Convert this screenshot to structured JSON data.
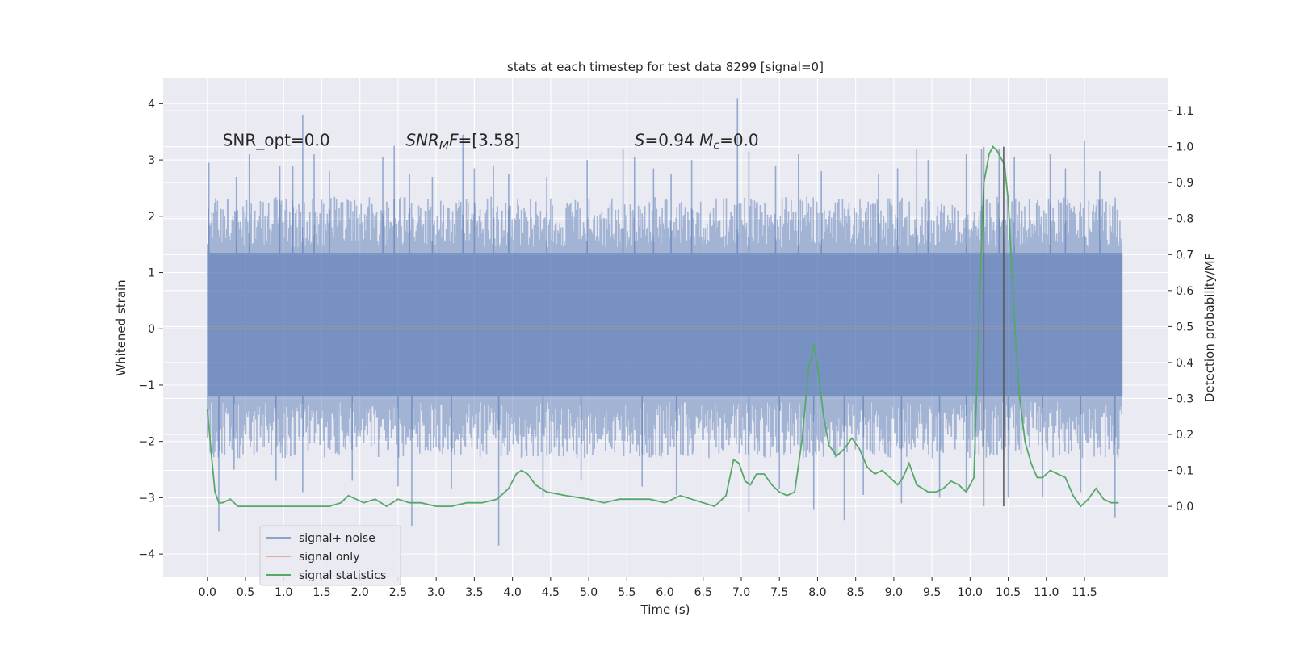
{
  "chart_data": {
    "type": "line",
    "title": "stats at each timestep for test data 8299 [signal=0]",
    "xlabel": "Time (s)",
    "ylabel": "Whitened strain",
    "ylabel_right": "Detection probability/MF",
    "xlim": [
      -0.58,
      12.59
    ],
    "ylim": [
      -4.4,
      4.45
    ],
    "ylim_right": [
      -0.195,
      1.19
    ],
    "x_ticks": [
      0.0,
      0.5,
      1.0,
      1.5,
      2.0,
      2.5,
      3.0,
      3.5,
      4.0,
      4.5,
      5.0,
      5.5,
      6.0,
      6.5,
      7.0,
      7.5,
      8.0,
      8.5,
      9.0,
      9.5,
      10.0,
      10.5,
      11.0,
      11.5
    ],
    "x_tick_labels": [
      "0.0",
      "0.5",
      "1.0",
      "1.5",
      "2.0",
      "2.5",
      "3.0",
      "3.5",
      "4.0",
      "4.5",
      "5.0",
      "5.5",
      "6.0",
      "6.5",
      "7.0",
      "7.5",
      "8.0",
      "8.5",
      "9.0",
      "9.5",
      "10.0",
      "10.5",
      "11.0",
      "11.5"
    ],
    "y_ticks": [
      4,
      3,
      2,
      1,
      0,
      -1,
      -2,
      -3,
      -4
    ],
    "y_tick_labels": [
      "4",
      "3",
      "2",
      "1",
      "0",
      "−1",
      "−2",
      "−3",
      "−4"
    ],
    "y_right_ticks": [
      1.1,
      1.0,
      0.9,
      0.8,
      0.7,
      0.6,
      0.5,
      0.4,
      0.3,
      0.2,
      0.1,
      0.0
    ],
    "y_right_tick_labels": [
      "1.1",
      "1.0",
      "0.9",
      "0.8",
      "0.7",
      "0.6",
      "0.5",
      "0.4",
      "0.3",
      "0.2",
      "0.1",
      "0.0"
    ],
    "grid": true,
    "legend_position": "bottom-left",
    "annotations": [
      {
        "x": 0.2,
        "y": 3.25,
        "parts": [
          {
            "t": "SNR_opt=0.0",
            "i": false
          }
        ]
      },
      {
        "x": 2.6,
        "y": 3.25,
        "parts": [
          {
            "t": "SNR",
            "i": true
          },
          {
            "t": "M",
            "i": true,
            "sub": true
          },
          {
            "t": "F",
            "i": true
          },
          {
            "t": "=[3.58]",
            "i": false
          }
        ]
      },
      {
        "x": 5.6,
        "y": 3.25,
        "parts": [
          {
            "t": "S",
            "i": true
          },
          {
            "t": "=0.94   ",
            "i": false
          },
          {
            "t": "M",
            "i": true
          },
          {
            "t": "c",
            "i": true,
            "sub": true
          },
          {
            "t": "=0.0",
            "i": false
          }
        ]
      }
    ],
    "vertical_lines": [
      10.18,
      10.44
    ],
    "series": [
      {
        "name": "signal+ noise",
        "color": "#4c72b0",
        "axis": "left",
        "x_range": [
          0.0,
          12.0
        ],
        "band": {
          "core_low": -1.2,
          "core_high": 1.35
        },
        "peaks_high": [
          [
            0.02,
            2.95
          ],
          [
            0.38,
            2.7
          ],
          [
            0.55,
            3.1
          ],
          [
            0.95,
            2.9
          ],
          [
            1.12,
            2.9
          ],
          [
            1.25,
            3.8
          ],
          [
            1.4,
            3.1
          ],
          [
            1.6,
            2.8
          ],
          [
            2.3,
            3.05
          ],
          [
            2.45,
            3.25
          ],
          [
            2.65,
            2.75
          ],
          [
            2.95,
            2.7
          ],
          [
            3.35,
            3.45
          ],
          [
            3.5,
            2.85
          ],
          [
            3.75,
            2.9
          ],
          [
            3.95,
            2.75
          ],
          [
            4.45,
            2.7
          ],
          [
            4.98,
            3.0
          ],
          [
            5.45,
            3.2
          ],
          [
            5.6,
            3.05
          ],
          [
            5.85,
            2.85
          ],
          [
            6.08,
            2.75
          ],
          [
            6.35,
            3.0
          ],
          [
            6.95,
            4.1
          ],
          [
            7.1,
            3.15
          ],
          [
            7.45,
            2.9
          ],
          [
            7.75,
            3.1
          ],
          [
            8.05,
            2.8
          ],
          [
            8.8,
            2.75
          ],
          [
            9.05,
            2.85
          ],
          [
            9.3,
            3.2
          ],
          [
            9.45,
            3.0
          ],
          [
            9.95,
            3.1
          ],
          [
            10.15,
            3.2
          ],
          [
            10.38,
            3.2
          ],
          [
            10.58,
            3.05
          ],
          [
            11.05,
            3.1
          ],
          [
            11.25,
            2.85
          ],
          [
            11.5,
            3.35
          ],
          [
            11.7,
            2.8
          ]
        ],
        "peaks_low": [
          [
            0.15,
            -3.6
          ],
          [
            0.35,
            -2.5
          ],
          [
            0.9,
            -2.7
          ],
          [
            1.25,
            -2.9
          ],
          [
            1.9,
            -2.7
          ],
          [
            2.5,
            -2.8
          ],
          [
            2.68,
            -3.5
          ],
          [
            3.2,
            -2.85
          ],
          [
            3.82,
            -3.85
          ],
          [
            4.4,
            -3.0
          ],
          [
            4.9,
            -2.7
          ],
          [
            5.7,
            -2.8
          ],
          [
            6.15,
            -2.95
          ],
          [
            7.1,
            -3.25
          ],
          [
            7.5,
            -2.85
          ],
          [
            7.95,
            -3.2
          ],
          [
            8.35,
            -3.4
          ],
          [
            8.6,
            -2.95
          ],
          [
            9.1,
            -3.1
          ],
          [
            9.6,
            -3.0
          ],
          [
            9.95,
            -2.9
          ],
          [
            10.5,
            -3.0
          ],
          [
            10.95,
            -3.0
          ],
          [
            11.45,
            -2.9
          ],
          [
            11.9,
            -3.35
          ]
        ]
      },
      {
        "name": "signal only",
        "color": "#dd8452",
        "axis": "left",
        "x": [
          0.0,
          12.0
        ],
        "y": [
          0.0,
          0.0
        ]
      },
      {
        "name": "signal statistics",
        "color": "#55a868",
        "axis": "right",
        "x": [
          0.0,
          0.05,
          0.1,
          0.15,
          0.2,
          0.3,
          0.4,
          0.5,
          0.6,
          0.75,
          0.9,
          1.0,
          1.2,
          1.4,
          1.6,
          1.75,
          1.85,
          1.95,
          2.05,
          2.2,
          2.35,
          2.5,
          2.65,
          2.8,
          3.0,
          3.2,
          3.4,
          3.6,
          3.8,
          3.95,
          4.05,
          4.12,
          4.2,
          4.3,
          4.45,
          4.7,
          5.0,
          5.2,
          5.4,
          5.6,
          5.8,
          6.0,
          6.2,
          6.35,
          6.5,
          6.65,
          6.8,
          6.9,
          6.97,
          7.05,
          7.12,
          7.2,
          7.3,
          7.4,
          7.5,
          7.6,
          7.7,
          7.8,
          7.88,
          7.95,
          8.0,
          8.08,
          8.15,
          8.25,
          8.35,
          8.45,
          8.55,
          8.65,
          8.75,
          8.85,
          8.95,
          9.05,
          9.12,
          9.2,
          9.3,
          9.45,
          9.55,
          9.65,
          9.75,
          9.85,
          9.95,
          10.05,
          10.12,
          10.18,
          10.25,
          10.3,
          10.35,
          10.45,
          10.5,
          10.55,
          10.6,
          10.65,
          10.72,
          10.8,
          10.88,
          10.95,
          11.05,
          11.15,
          11.25,
          11.35,
          11.45,
          11.55,
          11.65,
          11.75,
          11.85,
          11.95
        ],
        "y": [
          0.27,
          0.15,
          0.04,
          0.01,
          0.01,
          0.02,
          0.0,
          0.0,
          0.0,
          0.0,
          0.0,
          0.0,
          0.0,
          0.0,
          0.0,
          0.01,
          0.03,
          0.02,
          0.01,
          0.02,
          0.0,
          0.02,
          0.01,
          0.01,
          0.0,
          0.0,
          0.01,
          0.01,
          0.02,
          0.05,
          0.09,
          0.1,
          0.09,
          0.06,
          0.04,
          0.03,
          0.02,
          0.01,
          0.02,
          0.02,
          0.02,
          0.01,
          0.03,
          0.02,
          0.01,
          0.0,
          0.03,
          0.13,
          0.12,
          0.07,
          0.06,
          0.09,
          0.09,
          0.06,
          0.04,
          0.03,
          0.04,
          0.19,
          0.38,
          0.45,
          0.39,
          0.25,
          0.17,
          0.14,
          0.16,
          0.19,
          0.16,
          0.11,
          0.09,
          0.1,
          0.08,
          0.06,
          0.08,
          0.12,
          0.06,
          0.04,
          0.04,
          0.05,
          0.07,
          0.06,
          0.04,
          0.08,
          0.55,
          0.9,
          0.98,
          1.0,
          0.99,
          0.95,
          0.85,
          0.65,
          0.45,
          0.3,
          0.18,
          0.12,
          0.08,
          0.08,
          0.1,
          0.09,
          0.08,
          0.03,
          0.0,
          0.02,
          0.05,
          0.02,
          0.01,
          0.01
        ]
      }
    ]
  }
}
